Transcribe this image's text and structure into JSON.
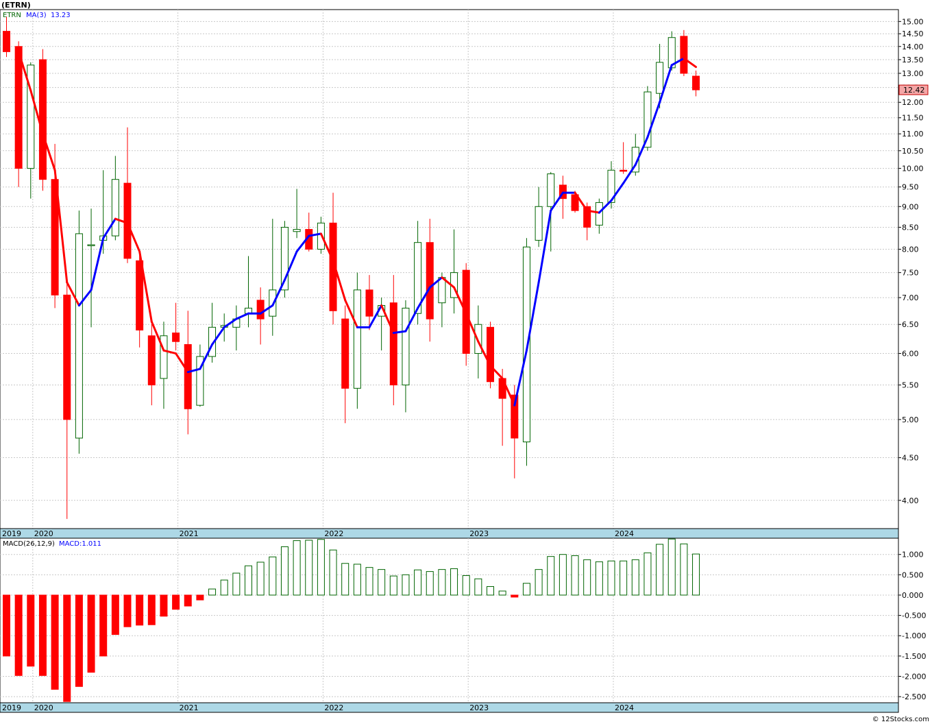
{
  "header": {
    "symbol": "(ETRN)",
    "legend_symbol": "ETRN",
    "legend_ma": "MA(3)",
    "legend_ma_value": "13.23",
    "macd_label": "MACD(26,12,9)",
    "macd_value_label": "MACD:1.011",
    "watermark": "© 12Stocks.com"
  },
  "colors": {
    "up": "#006400",
    "down": "#ff0000",
    "ma_up": "#0000ff",
    "ma_down": "#ff0000",
    "year_band": "#add8e6",
    "last_price_bg": "#f4a6a6"
  },
  "chart_data": [
    {
      "type": "candlestick",
      "scale": "log",
      "ylim": [
        3.7,
        15.5
      ],
      "yticks": [
        "4.00",
        "4.50",
        "5.00",
        "5.50",
        "6.00",
        "6.50",
        "7.00",
        "7.50",
        "8.00",
        "8.50",
        "9.00",
        "9.50",
        "10.00",
        "10.50",
        "11.00",
        "11.50",
        "12.00",
        "12.50",
        "13.00",
        "13.50",
        "14.00",
        "14.50",
        "15.00"
      ],
      "last_price": "12.42",
      "x_year_labels": [
        {
          "label": "2019",
          "index": -0.6
        },
        {
          "label": "2020",
          "index": 2.5
        },
        {
          "label": "2021",
          "index": 14.5
        },
        {
          "label": "2022",
          "index": 26.5
        },
        {
          "label": "2023",
          "index": 38.5
        },
        {
          "label": "2024",
          "index": 50.5
        }
      ],
      "series": [
        {
          "name": "ETRN",
          "candles": [
            {
              "o": 14.6,
              "h": 15.2,
              "l": 13.6,
              "c": 13.8
            },
            {
              "o": 14.0,
              "h": 14.2,
              "l": 9.5,
              "c": 10.0
            },
            {
              "o": 10.0,
              "h": 13.4,
              "l": 9.2,
              "c": 13.3
            },
            {
              "o": 13.5,
              "h": 13.9,
              "l": 9.4,
              "c": 9.7
            },
            {
              "o": 9.7,
              "h": 10.7,
              "l": 6.8,
              "c": 7.05
            },
            {
              "o": 7.05,
              "h": 7.3,
              "l": 3.8,
              "c": 5.0
            },
            {
              "o": 4.75,
              "h": 8.9,
              "l": 4.55,
              "c": 8.35
            },
            {
              "o": 8.1,
              "h": 8.95,
              "l": 6.45,
              "c": 8.1
            },
            {
              "o": 8.2,
              "h": 9.95,
              "l": 7.9,
              "c": 8.3
            },
            {
              "o": 8.3,
              "h": 10.35,
              "l": 8.2,
              "c": 9.7
            },
            {
              "o": 9.6,
              "h": 11.2,
              "l": 7.7,
              "c": 7.8
            },
            {
              "o": 7.75,
              "h": 7.95,
              "l": 6.1,
              "c": 6.4
            },
            {
              "o": 6.3,
              "h": 6.5,
              "l": 5.2,
              "c": 5.5
            },
            {
              "o": 5.6,
              "h": 6.55,
              "l": 5.15,
              "c": 6.3
            },
            {
              "o": 6.35,
              "h": 6.9,
              "l": 6.05,
              "c": 6.2
            },
            {
              "o": 6.15,
              "h": 6.75,
              "l": 4.8,
              "c": 5.15
            },
            {
              "o": 5.2,
              "h": 6.15,
              "l": 5.18,
              "c": 5.95
            },
            {
              "o": 5.95,
              "h": 6.9,
              "l": 5.85,
              "c": 6.45
            },
            {
              "o": 6.45,
              "h": 6.7,
              "l": 6.2,
              "c": 6.48
            },
            {
              "o": 6.45,
              "h": 6.85,
              "l": 6.05,
              "c": 6.6
            },
            {
              "o": 6.7,
              "h": 7.85,
              "l": 6.45,
              "c": 6.8
            },
            {
              "o": 6.95,
              "h": 7.2,
              "l": 6.15,
              "c": 6.6
            },
            {
              "o": 6.65,
              "h": 8.7,
              "l": 6.3,
              "c": 7.15
            },
            {
              "o": 7.15,
              "h": 8.65,
              "l": 7.0,
              "c": 8.5
            },
            {
              "o": 8.4,
              "h": 9.45,
              "l": 8.25,
              "c": 8.45
            },
            {
              "o": 8.45,
              "h": 8.85,
              "l": 7.95,
              "c": 8.0
            },
            {
              "o": 8.0,
              "h": 8.75,
              "l": 7.9,
              "c": 8.6
            },
            {
              "o": 8.6,
              "h": 9.35,
              "l": 6.5,
              "c": 6.75
            },
            {
              "o": 6.6,
              "h": 6.85,
              "l": 4.95,
              "c": 5.45
            },
            {
              "o": 5.45,
              "h": 7.5,
              "l": 5.15,
              "c": 7.15
            },
            {
              "o": 7.15,
              "h": 7.45,
              "l": 6.4,
              "c": 6.65
            },
            {
              "o": 6.65,
              "h": 7.0,
              "l": 6.05,
              "c": 6.85
            },
            {
              "o": 6.9,
              "h": 7.45,
              "l": 5.2,
              "c": 5.5
            },
            {
              "o": 5.5,
              "h": 6.95,
              "l": 5.1,
              "c": 6.8
            },
            {
              "o": 6.7,
              "h": 8.65,
              "l": 6.5,
              "c": 8.15
            },
            {
              "o": 8.15,
              "h": 8.7,
              "l": 6.2,
              "c": 6.6
            },
            {
              "o": 6.9,
              "h": 7.5,
              "l": 6.45,
              "c": 7.4
            },
            {
              "o": 7.0,
              "h": 8.45,
              "l": 6.7,
              "c": 7.5
            },
            {
              "o": 7.55,
              "h": 7.7,
              "l": 5.8,
              "c": 6.0
            },
            {
              "o": 6.0,
              "h": 6.85,
              "l": 5.6,
              "c": 6.5
            },
            {
              "o": 6.45,
              "h": 6.55,
              "l": 5.45,
              "c": 5.55
            },
            {
              "o": 5.6,
              "h": 5.75,
              "l": 4.65,
              "c": 5.3
            },
            {
              "o": 5.35,
              "h": 5.5,
              "l": 4.25,
              "c": 4.75
            },
            {
              "o": 4.7,
              "h": 8.25,
              "l": 4.4,
              "c": 8.05
            },
            {
              "o": 8.2,
              "h": 9.5,
              "l": 8.05,
              "c": 9.0
            },
            {
              "o": 9.0,
              "h": 9.9,
              "l": 7.95,
              "c": 9.85
            },
            {
              "o": 9.55,
              "h": 9.8,
              "l": 8.7,
              "c": 9.2
            },
            {
              "o": 9.3,
              "h": 9.4,
              "l": 8.85,
              "c": 8.9
            },
            {
              "o": 9.0,
              "h": 9.1,
              "l": 8.2,
              "c": 8.5
            },
            {
              "o": 8.55,
              "h": 9.2,
              "l": 8.35,
              "c": 9.1
            },
            {
              "o": 9.1,
              "h": 10.2,
              "l": 8.95,
              "c": 9.95
            },
            {
              "o": 9.95,
              "h": 10.75,
              "l": 9.85,
              "c": 9.92
            },
            {
              "o": 9.9,
              "h": 11.0,
              "l": 9.8,
              "c": 10.6
            },
            {
              "o": 10.6,
              "h": 12.55,
              "l": 10.5,
              "c": 12.35
            },
            {
              "o": 12.3,
              "h": 14.1,
              "l": 11.8,
              "c": 13.4
            },
            {
              "o": 13.2,
              "h": 14.6,
              "l": 13.1,
              "c": 14.35
            },
            {
              "o": 14.4,
              "h": 14.65,
              "l": 12.9,
              "c": 13.0
            },
            {
              "o": 12.9,
              "h": 13.1,
              "l": 12.2,
              "c": 12.42
            }
          ]
        },
        {
          "name": "MA(3)",
          "values": [
            null,
            13.8,
            12.4,
            11.0,
            9.95,
            7.3,
            6.85,
            7.15,
            8.25,
            8.7,
            8.6,
            7.95,
            6.55,
            6.05,
            6.0,
            5.7,
            5.75,
            6.15,
            6.45,
            6.6,
            6.7,
            6.7,
            6.85,
            7.35,
            7.95,
            8.3,
            8.35,
            7.75,
            6.95,
            6.45,
            6.45,
            6.85,
            6.35,
            6.38,
            6.8,
            7.2,
            7.4,
            7.2,
            6.7,
            6.2,
            5.8,
            5.6,
            5.2,
            6.05,
            7.3,
            8.9,
            9.35,
            9.35,
            8.9,
            8.85,
            9.15,
            9.6,
            10.1,
            10.9,
            12.0,
            13.3,
            13.55,
            13.23
          ]
        }
      ]
    },
    {
      "type": "bar",
      "title": "MACD(26,12,9)",
      "ylim": [
        -2.65,
        1.4
      ],
      "yticks": [
        "1.000",
        "0.500",
        "0.000",
        "-0.500",
        "-1.000",
        "-1.500",
        "-2.000",
        "-2.500"
      ],
      "values": [
        -1.5,
        -1.98,
        -1.75,
        -1.98,
        -2.32,
        -2.62,
        -2.25,
        -1.9,
        -1.5,
        -0.97,
        -0.78,
        -0.74,
        -0.73,
        -0.52,
        -0.35,
        -0.27,
        -0.12,
        0.15,
        0.37,
        0.54,
        0.72,
        0.81,
        0.94,
        1.19,
        1.34,
        1.35,
        1.37,
        1.11,
        0.78,
        0.76,
        0.68,
        0.63,
        0.47,
        0.5,
        0.62,
        0.58,
        0.63,
        0.65,
        0.48,
        0.4,
        0.21,
        0.1,
        -0.05,
        0.29,
        0.63,
        0.95,
        1.0,
        0.97,
        0.87,
        0.82,
        0.84,
        0.84,
        0.87,
        1.04,
        1.25,
        1.38,
        1.26,
        1.011
      ]
    }
  ]
}
